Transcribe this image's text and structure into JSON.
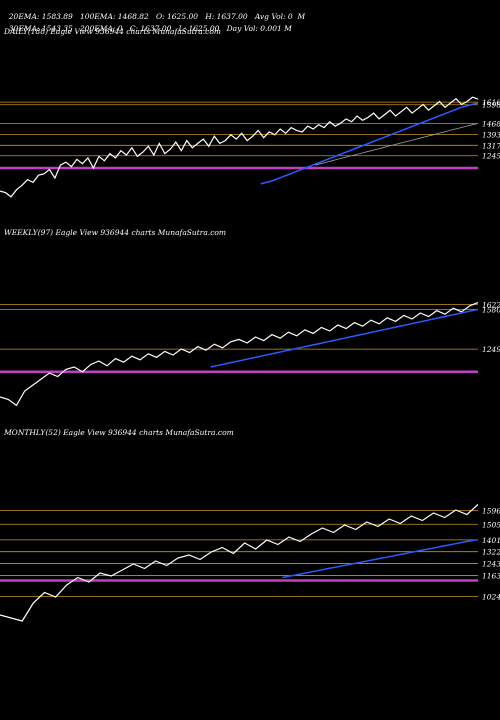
{
  "header": {
    "row1": [
      "20EMA: 1583.89",
      "100EMA: 1468.82",
      "O: 1625.00",
      "H: 1637.00",
      "Avg Vol: 0  M"
    ],
    "row2": [
      "30EMA: 1543.35",
      "200EMA: 0",
      "C: 1637.00",
      "L: 1625.00",
      "Day Vol: 0.001 M"
    ]
  },
  "chart_data": [
    {
      "type": "line",
      "title": "DAILY(188) Eagle  View  936944  charts MunafaSutra.com",
      "levels": [
        1616,
        1598,
        1468,
        1393,
        1317,
        1245
      ],
      "ylim": [
        800,
        1700
      ],
      "series": [
        {
          "values": [
            1000,
            990,
            960,
            1010,
            1040,
            1080,
            1060,
            1110,
            1120,
            1150,
            1090,
            1180,
            1200,
            1170,
            1220,
            1190,
            1230,
            1160,
            1240,
            1210,
            1260,
            1230,
            1280,
            1250,
            1300,
            1240,
            1270,
            1310,
            1250,
            1330,
            1260,
            1290,
            1340,
            1280,
            1350,
            1300,
            1330,
            1360,
            1310,
            1380,
            1330,
            1350,
            1390,
            1360,
            1400,
            1350,
            1380,
            1420,
            1370,
            1410,
            1390,
            1430,
            1400,
            1440,
            1420,
            1410,
            1450,
            1430,
            1460,
            1440,
            1480,
            1450,
            1470,
            1500,
            1480,
            1520,
            1490,
            1510,
            1540,
            1500,
            1530,
            1560,
            1520,
            1550,
            1580,
            1540,
            1570,
            1600,
            1560,
            1590,
            1620,
            1580,
            1610,
            1640,
            1600,
            1620,
            1650,
            1637
          ]
        },
        {
          "values": [
            1050,
            1060,
            1070,
            1085,
            1100,
            1115,
            1130,
            1145,
            1160,
            1175,
            1190,
            1205,
            1220,
            1235,
            1250,
            1265,
            1280,
            1295,
            1310,
            1325,
            1340,
            1355,
            1370,
            1385,
            1400,
            1415,
            1430,
            1445,
            1460,
            1475,
            1490,
            1505,
            1520,
            1535,
            1550,
            1565,
            1580,
            1590,
            1600,
            1610
          ]
        },
        {
          "values": [
            1180,
            1190,
            1200,
            1210,
            1220,
            1230,
            1240,
            1250,
            1260,
            1270,
            1280,
            1290,
            1300,
            1310,
            1320,
            1330,
            1340,
            1350,
            1360,
            1370,
            1380,
            1390,
            1400,
            1410,
            1420,
            1430,
            1440,
            1450,
            1460,
            1468
          ]
        }
      ]
    },
    {
      "type": "line",
      "title": "WEEKLY(97) Eagle  View  936944  charts MunafaSutra.com",
      "levels": [
        1622,
        1580,
        1249
      ],
      "ylim": [
        700,
        1700
      ],
      "series": [
        {
          "values": [
            850,
            830,
            780,
            900,
            950,
            1000,
            1050,
            1020,
            1080,
            1100,
            1060,
            1120,
            1150,
            1110,
            1170,
            1140,
            1190,
            1160,
            1210,
            1180,
            1230,
            1200,
            1250,
            1220,
            1270,
            1240,
            1290,
            1260,
            1310,
            1330,
            1300,
            1350,
            1320,
            1370,
            1340,
            1390,
            1360,
            1410,
            1380,
            1430,
            1400,
            1450,
            1420,
            1470,
            1440,
            1490,
            1460,
            1510,
            1480,
            1530,
            1500,
            1550,
            1520,
            1570,
            1540,
            1590,
            1560,
            1610,
            1637
          ]
        },
        {
          "values": [
            1100,
            1115,
            1130,
            1145,
            1160,
            1175,
            1190,
            1205,
            1220,
            1235,
            1250,
            1265,
            1280,
            1295,
            1310,
            1325,
            1340,
            1355,
            1370,
            1385,
            1400,
            1415,
            1430,
            1445,
            1460,
            1475,
            1490,
            1505,
            1520,
            1535,
            1550,
            1565,
            1580
          ]
        }
      ]
    },
    {
      "type": "line",
      "title": "MONTHLY(52) Eagle  View  936944  charts MunafaSutra.com",
      "levels": [
        1596,
        1505,
        1401,
        1322,
        1243,
        1163,
        1024
      ],
      "ylim": [
        800,
        1700
      ],
      "series": [
        {
          "values": [
            900,
            880,
            860,
            980,
            1050,
            1020,
            1100,
            1150,
            1120,
            1180,
            1160,
            1200,
            1240,
            1210,
            1260,
            1230,
            1280,
            1300,
            1270,
            1320,
            1350,
            1310,
            1380,
            1340,
            1400,
            1370,
            1420,
            1390,
            1440,
            1480,
            1450,
            1500,
            1470,
            1520,
            1490,
            1540,
            1510,
            1560,
            1530,
            1580,
            1550,
            1600,
            1570,
            1637
          ]
        },
        {
          "values": [
            1150,
            1165,
            1180,
            1195,
            1210,
            1225,
            1240,
            1255,
            1270,
            1285,
            1300,
            1315,
            1330,
            1345,
            1360,
            1375,
            1390,
            1401
          ]
        }
      ]
    }
  ],
  "colors": {
    "level": "#c8961e",
    "ema_blue": "#2a5cff",
    "magenta": "#c040c0",
    "price": "#ffffff",
    "gray": "#a0a0a0"
  }
}
